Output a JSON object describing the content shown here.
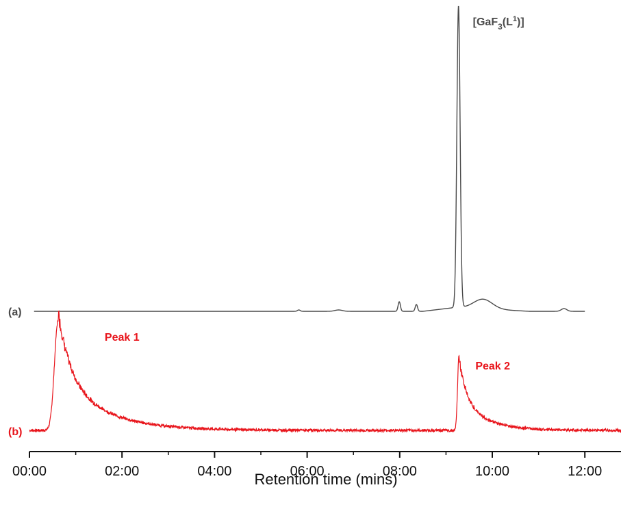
{
  "chart_data": {
    "type": "line",
    "title": "",
    "xlabel": "Retention time (mins)",
    "ylabel": "",
    "xlim": [
      0,
      12.9
    ],
    "x_ticks": [
      "00:00",
      "02:00",
      "04:00",
      "06:00",
      "08:00",
      "10:00",
      "12:00"
    ],
    "x_tick_values": [
      0,
      2,
      4,
      6,
      8,
      10,
      12
    ],
    "grid": false,
    "legend": "none",
    "colors": {
      "trace_a": "#4a4a4a",
      "trace_b": "#e8141b",
      "axis": "#111111"
    },
    "series": [
      {
        "name": "(a)",
        "color": "#4a4a4a",
        "x_range": [
          0.1,
          12.0
        ],
        "baseline": 0,
        "peaks": [
          {
            "x": 5.82,
            "height": 2,
            "width": 0.03
          },
          {
            "x": 6.68,
            "height": 2,
            "width": 0.08
          },
          {
            "x": 7.99,
            "height": 14,
            "width": 0.025
          },
          {
            "x": 8.36,
            "height": 10,
            "width": 0.025
          },
          {
            "x": 9.27,
            "height": 440,
            "width": 0.035
          },
          {
            "x": 9.8,
            "height": 14,
            "width": 0.2
          },
          {
            "x": 11.55,
            "height": 4,
            "width": 0.06
          }
        ],
        "annotations": [
          {
            "text_main": "[GaF",
            "sub": "3",
            "mid": "(L",
            "sup": "1",
            "end": ")]",
            "x": 9.27
          }
        ]
      },
      {
        "name": "(b)",
        "color": "#e8141b",
        "x_range": [
          0.0,
          12.9
        ],
        "baseline": 0,
        "noise": 2,
        "peaks": [
          {
            "x": 0.62,
            "height": 160,
            "rise": 0.08,
            "decay": 0.25
          },
          {
            "x": 9.28,
            "height": 108,
            "rise": 0.03,
            "decay": 0.15
          }
        ],
        "annotations": [
          {
            "text": "Peak 1",
            "x": 0.62
          },
          {
            "text": "Peak 2",
            "x": 9.28
          }
        ]
      }
    ]
  }
}
